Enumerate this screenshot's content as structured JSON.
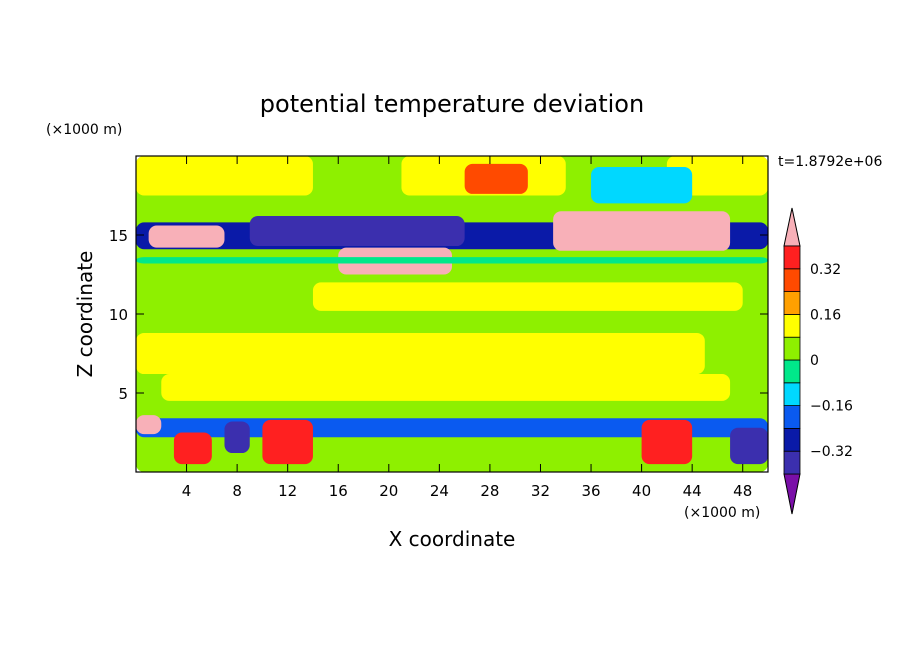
{
  "chart_data": {
    "type": "heatmap",
    "title": "potential temperature deviation",
    "xlabel": "X coordinate",
    "ylabel": "Z coordinate",
    "x_unit": "(×1000 m)",
    "y_unit": "(×1000 m)",
    "time_label": "t=1.8792e+06",
    "xlim": [
      0,
      50
    ],
    "ylim": [
      0,
      20
    ],
    "x_ticks": [
      "4",
      "8",
      "12",
      "16",
      "20",
      "24",
      "28",
      "32",
      "36",
      "40",
      "44",
      "48"
    ],
    "x_tick_values": [
      4,
      8,
      12,
      16,
      20,
      24,
      28,
      32,
      36,
      40,
      44,
      48
    ],
    "y_ticks": [
      "5",
      "10",
      "15"
    ],
    "y_tick_values": [
      5,
      10,
      15
    ],
    "colorbar": {
      "tick_labels": [
        "0.32",
        "0.16",
        "0",
        "−0.16",
        "−0.32"
      ],
      "tick_values": [
        0.32,
        0.16,
        0,
        -0.16,
        -0.32
      ],
      "levels": [
        -0.4,
        -0.32,
        -0.24,
        -0.16,
        -0.08,
        0,
        0.08,
        0.16,
        0.24,
        0.32,
        0.4
      ],
      "colors": [
        "#7a0fa8",
        "#3b2fae",
        "#0a1aa8",
        "#0a5af0",
        "#00d8ff",
        "#00e88a",
        "#8ef000",
        "#ffff00",
        "#ffa000",
        "#ff4a00",
        "#ff2020",
        "#f8b0b8"
      ]
    },
    "regions": [
      {
        "level": 0.0,
        "x": [
          0,
          50
        ],
        "y": [
          0,
          20
        ]
      },
      {
        "level": 0.08,
        "x": [
          0,
          14
        ],
        "y": [
          17.5,
          20
        ]
      },
      {
        "level": 0.08,
        "x": [
          21,
          34
        ],
        "y": [
          17.5,
          20
        ]
      },
      {
        "level": 0.08,
        "x": [
          42,
          50
        ],
        "y": [
          17.5,
          20
        ]
      },
      {
        "level": 0.08,
        "x": [
          14,
          48
        ],
        "y": [
          10.2,
          12
        ]
      },
      {
        "level": 0.08,
        "x": [
          0,
          45
        ],
        "y": [
          6.2,
          8.8
        ]
      },
      {
        "level": 0.08,
        "x": [
          2,
          47
        ],
        "y": [
          4.5,
          6.2
        ]
      },
      {
        "level": 0.24,
        "x": [
          26,
          31
        ],
        "y": [
          17.6,
          19.5
        ]
      },
      {
        "level": -0.16,
        "x": [
          36,
          44
        ],
        "y": [
          17,
          19.3
        ]
      },
      {
        "level": -0.32,
        "x": [
          0,
          50
        ],
        "y": [
          14.1,
          15.8
        ]
      },
      {
        "level": -0.4,
        "x": [
          9,
          26
        ],
        "y": [
          14.3,
          16.2
        ]
      },
      {
        "level": 0.4,
        "x": [
          1,
          7
        ],
        "y": [
          14.2,
          15.6
        ]
      },
      {
        "level": 0.4,
        "x": [
          33,
          47
        ],
        "y": [
          14,
          16.5
        ]
      },
      {
        "level": 0.4,
        "x": [
          16,
          25
        ],
        "y": [
          12.5,
          14.2
        ]
      },
      {
        "level": -0.08,
        "x": [
          0,
          50
        ],
        "y": [
          13.2,
          13.6
        ]
      },
      {
        "level": -0.24,
        "x": [
          0,
          50
        ],
        "y": [
          2.2,
          3.4
        ]
      },
      {
        "level": 0.32,
        "x": [
          10,
          14
        ],
        "y": [
          0.5,
          3.3
        ]
      },
      {
        "level": 0.32,
        "x": [
          40,
          44
        ],
        "y": [
          0.5,
          3.3
        ]
      },
      {
        "level": 0.32,
        "x": [
          3,
          6
        ],
        "y": [
          0.5,
          2.5
        ]
      },
      {
        "level": -0.4,
        "x": [
          7,
          9
        ],
        "y": [
          1.2,
          3.2
        ]
      },
      {
        "level": -0.4,
        "x": [
          47,
          50
        ],
        "y": [
          0.5,
          2.8
        ]
      },
      {
        "level": 0.4,
        "x": [
          0,
          2
        ],
        "y": [
          2.4,
          3.6
        ]
      }
    ]
  }
}
